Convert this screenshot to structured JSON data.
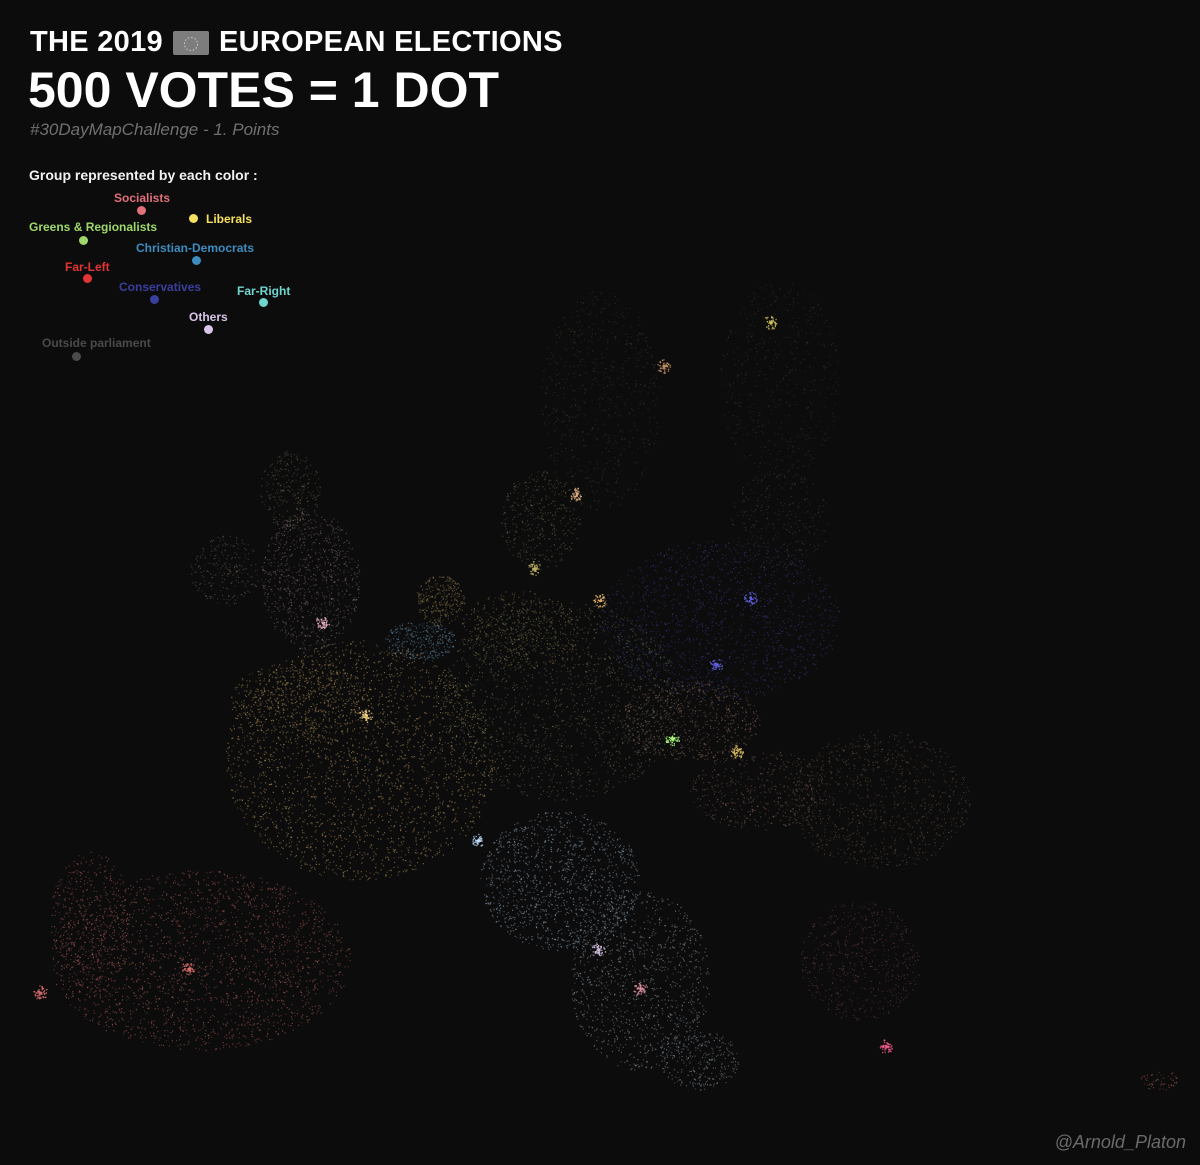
{
  "header": {
    "title_part1": "THE 2019",
    "title_part2": "EUROPEAN ELECTIONS",
    "headline": "500 VOTES = 1 DOT",
    "subtitle": "#30DayMapChallenge - 1. Points"
  },
  "legend": {
    "heading": "Group represented by each color :",
    "groups": [
      {
        "id": "socialists",
        "label": "Socialists",
        "color": "#e0707a"
      },
      {
        "id": "liberals",
        "label": "Liberals",
        "color": "#f5e060"
      },
      {
        "id": "greens",
        "label": "Greens & Regionalists",
        "color": "#9fd86a"
      },
      {
        "id": "christian-democrats",
        "label": "Christian-Democrats",
        "color": "#3d8cc0"
      },
      {
        "id": "far-left",
        "label": "Far-Left",
        "color": "#e23535"
      },
      {
        "id": "conservatives",
        "label": "Conservatives",
        "color": "#3a3f9e"
      },
      {
        "id": "far-right",
        "label": "Far-Right",
        "color": "#6ed6cf"
      },
      {
        "id": "others",
        "label": "Others",
        "color": "#d9c6e8"
      },
      {
        "id": "outside-parliament",
        "label": "Outside parliament",
        "color": "#4a4a4a"
      }
    ]
  },
  "credit": "@Arnold_Platon",
  "icons": {
    "flag": "eu-flag-icon"
  }
}
